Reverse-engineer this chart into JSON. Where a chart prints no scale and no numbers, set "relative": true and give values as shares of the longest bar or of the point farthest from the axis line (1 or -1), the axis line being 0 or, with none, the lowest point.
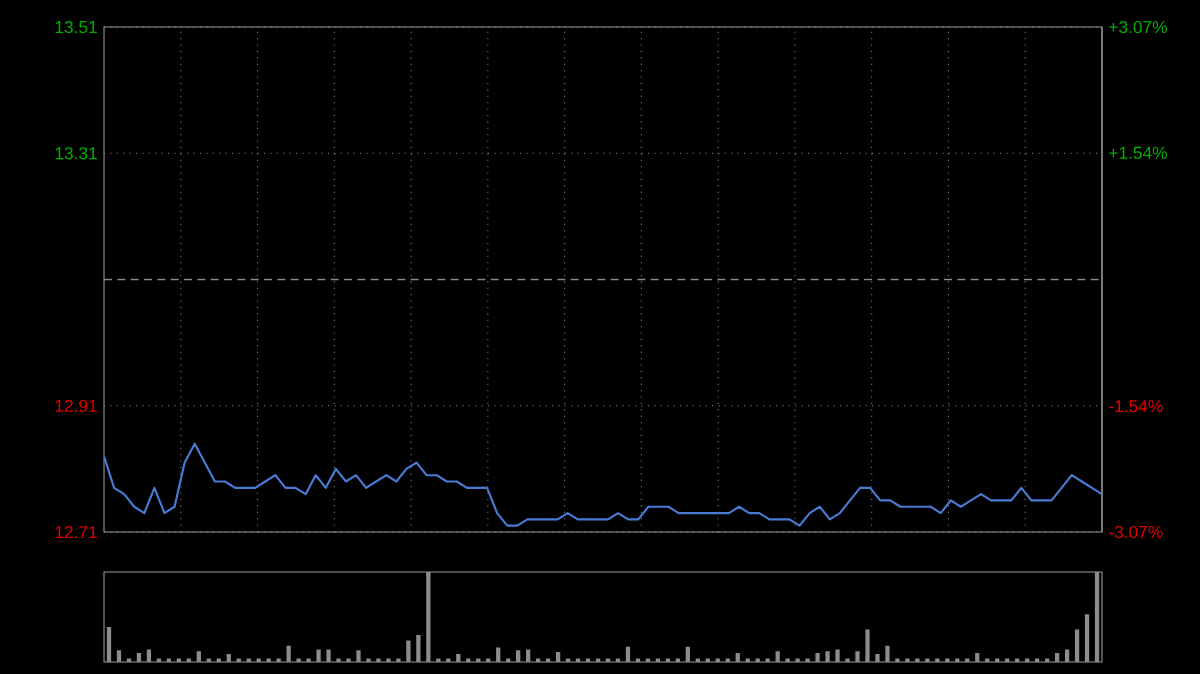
{
  "chart_data": [
    {
      "type": "line",
      "categories": [
        null,
        null,
        null,
        null,
        null,
        null,
        null,
        null,
        null,
        null,
        null,
        null,
        null,
        null,
        null,
        null,
        null,
        null,
        null,
        null,
        null,
        null,
        null,
        null,
        null,
        null,
        null,
        null,
        null,
        null,
        null,
        null,
        null,
        null,
        null,
        null,
        null,
        null,
        null,
        null,
        null,
        null,
        null,
        null,
        null,
        null,
        null,
        null,
        null,
        null,
        null,
        null,
        null,
        null,
        null,
        null,
        null,
        null,
        null,
        null,
        null,
        null,
        null,
        null,
        null,
        null,
        null,
        null,
        null,
        null,
        null,
        null,
        null,
        null,
        null,
        null,
        null,
        null,
        null,
        null,
        null,
        null,
        null,
        null,
        null,
        null,
        null,
        null,
        null,
        null,
        null,
        null,
        null,
        null,
        null,
        null,
        null,
        null,
        null,
        null
      ],
      "series": [
        {
          "color": "#4a7bd4",
          "values": [
            12.83,
            12.78,
            12.77,
            12.75,
            12.74,
            12.78,
            12.74,
            12.75,
            12.82,
            12.85,
            12.82,
            12.79,
            12.79,
            12.78,
            12.78,
            12.78,
            12.79,
            12.8,
            12.78,
            12.78,
            12.77,
            12.8,
            12.78,
            12.81,
            12.79,
            12.8,
            12.78,
            12.79,
            12.8,
            12.79,
            12.81,
            12.82,
            12.8,
            12.8,
            12.79,
            12.79,
            12.78,
            12.78,
            12.78,
            12.74,
            12.72,
            12.72,
            12.73,
            12.73,
            12.73,
            12.73,
            12.74,
            12.73,
            12.73,
            12.73,
            12.73,
            12.74,
            12.73,
            12.73,
            12.75,
            12.75,
            12.75,
            12.74,
            12.74,
            12.74,
            12.74,
            12.74,
            12.74,
            12.75,
            12.74,
            12.74,
            12.73,
            12.73,
            12.73,
            12.72,
            12.74,
            12.75,
            12.73,
            12.74,
            12.76,
            12.78,
            12.78,
            12.76,
            12.76,
            12.75,
            12.75,
            12.75,
            12.75,
            12.74,
            12.76,
            12.75,
            12.76,
            12.77,
            12.76,
            12.76,
            12.76,
            12.78,
            12.76,
            12.76,
            12.76,
            12.78,
            12.8,
            12.79,
            12.78,
            12.77
          ]
        }
      ],
      "ylim": [
        12.71,
        13.51
      ],
      "yticks": [
        12.71,
        12.91,
        13.31,
        13.51
      ],
      "y2lim": [
        -3.07,
        3.07
      ],
      "y2ticks": [
        {
          "value": -3.07,
          "label": "-3.07%"
        },
        {
          "value": -1.54,
          "label": "-1.54%"
        },
        {
          "value": 1.54,
          "label": "+1.54%"
        },
        {
          "value": 3.07,
          "label": "+3.07%"
        }
      ],
      "ref_lines": [
        {
          "axis": "y",
          "value": 13.11,
          "line_style": "dashed"
        }
      ],
      "grid": true
    },
    {
      "type": "bar",
      "relative": true,
      "color": "#8c8c8c",
      "categories": [
        null,
        null,
        null,
        null,
        null,
        null,
        null,
        null,
        null,
        null,
        null,
        null,
        null,
        null,
        null,
        null,
        null,
        null,
        null,
        null,
        null,
        null,
        null,
        null,
        null,
        null,
        null,
        null,
        null,
        null,
        null,
        null,
        null,
        null,
        null,
        null,
        null,
        null,
        null,
        null,
        null,
        null,
        null,
        null,
        null,
        null,
        null,
        null,
        null,
        null,
        null,
        null,
        null,
        null,
        null,
        null,
        null,
        null,
        null,
        null,
        null,
        null,
        null,
        null,
        null,
        null,
        null,
        null,
        null,
        null,
        null,
        null,
        null,
        null,
        null,
        null,
        null,
        null,
        null,
        null,
        null,
        null,
        null,
        null,
        null,
        null,
        null,
        null,
        null,
        null,
        null,
        null,
        null,
        null,
        null,
        null,
        null,
        null,
        null,
        null
      ],
      "values": [
        0.39,
        0.13,
        0.04,
        0.1,
        0.14,
        0.04,
        0.04,
        0.04,
        0.04,
        0.12,
        0.04,
        0.04,
        0.09,
        0.04,
        0.04,
        0.04,
        0.04,
        0.04,
        0.18,
        0.04,
        0.04,
        0.14,
        0.14,
        0.04,
        0.04,
        0.13,
        0.04,
        0.04,
        0.04,
        0.04,
        0.24,
        0.3,
        1.0,
        0.04,
        0.04,
        0.09,
        0.04,
        0.04,
        0.04,
        0.16,
        0.04,
        0.13,
        0.14,
        0.04,
        0.04,
        0.11,
        0.04,
        0.04,
        0.04,
        0.04,
        0.04,
        0.04,
        0.17,
        0.04,
        0.04,
        0.04,
        0.04,
        0.04,
        0.17,
        0.04,
        0.04,
        0.04,
        0.04,
        0.1,
        0.04,
        0.04,
        0.04,
        0.12,
        0.04,
        0.04,
        0.04,
        0.1,
        0.12,
        0.14,
        0.04,
        0.12,
        0.36,
        0.09,
        0.18,
        0.04,
        0.04,
        0.04,
        0.04,
        0.04,
        0.04,
        0.04,
        0.04,
        0.1,
        0.04,
        0.04,
        0.04,
        0.04,
        0.04,
        0.04,
        0.04,
        0.1,
        0.14,
        0.36,
        0.53,
        1.0
      ]
    }
  ]
}
